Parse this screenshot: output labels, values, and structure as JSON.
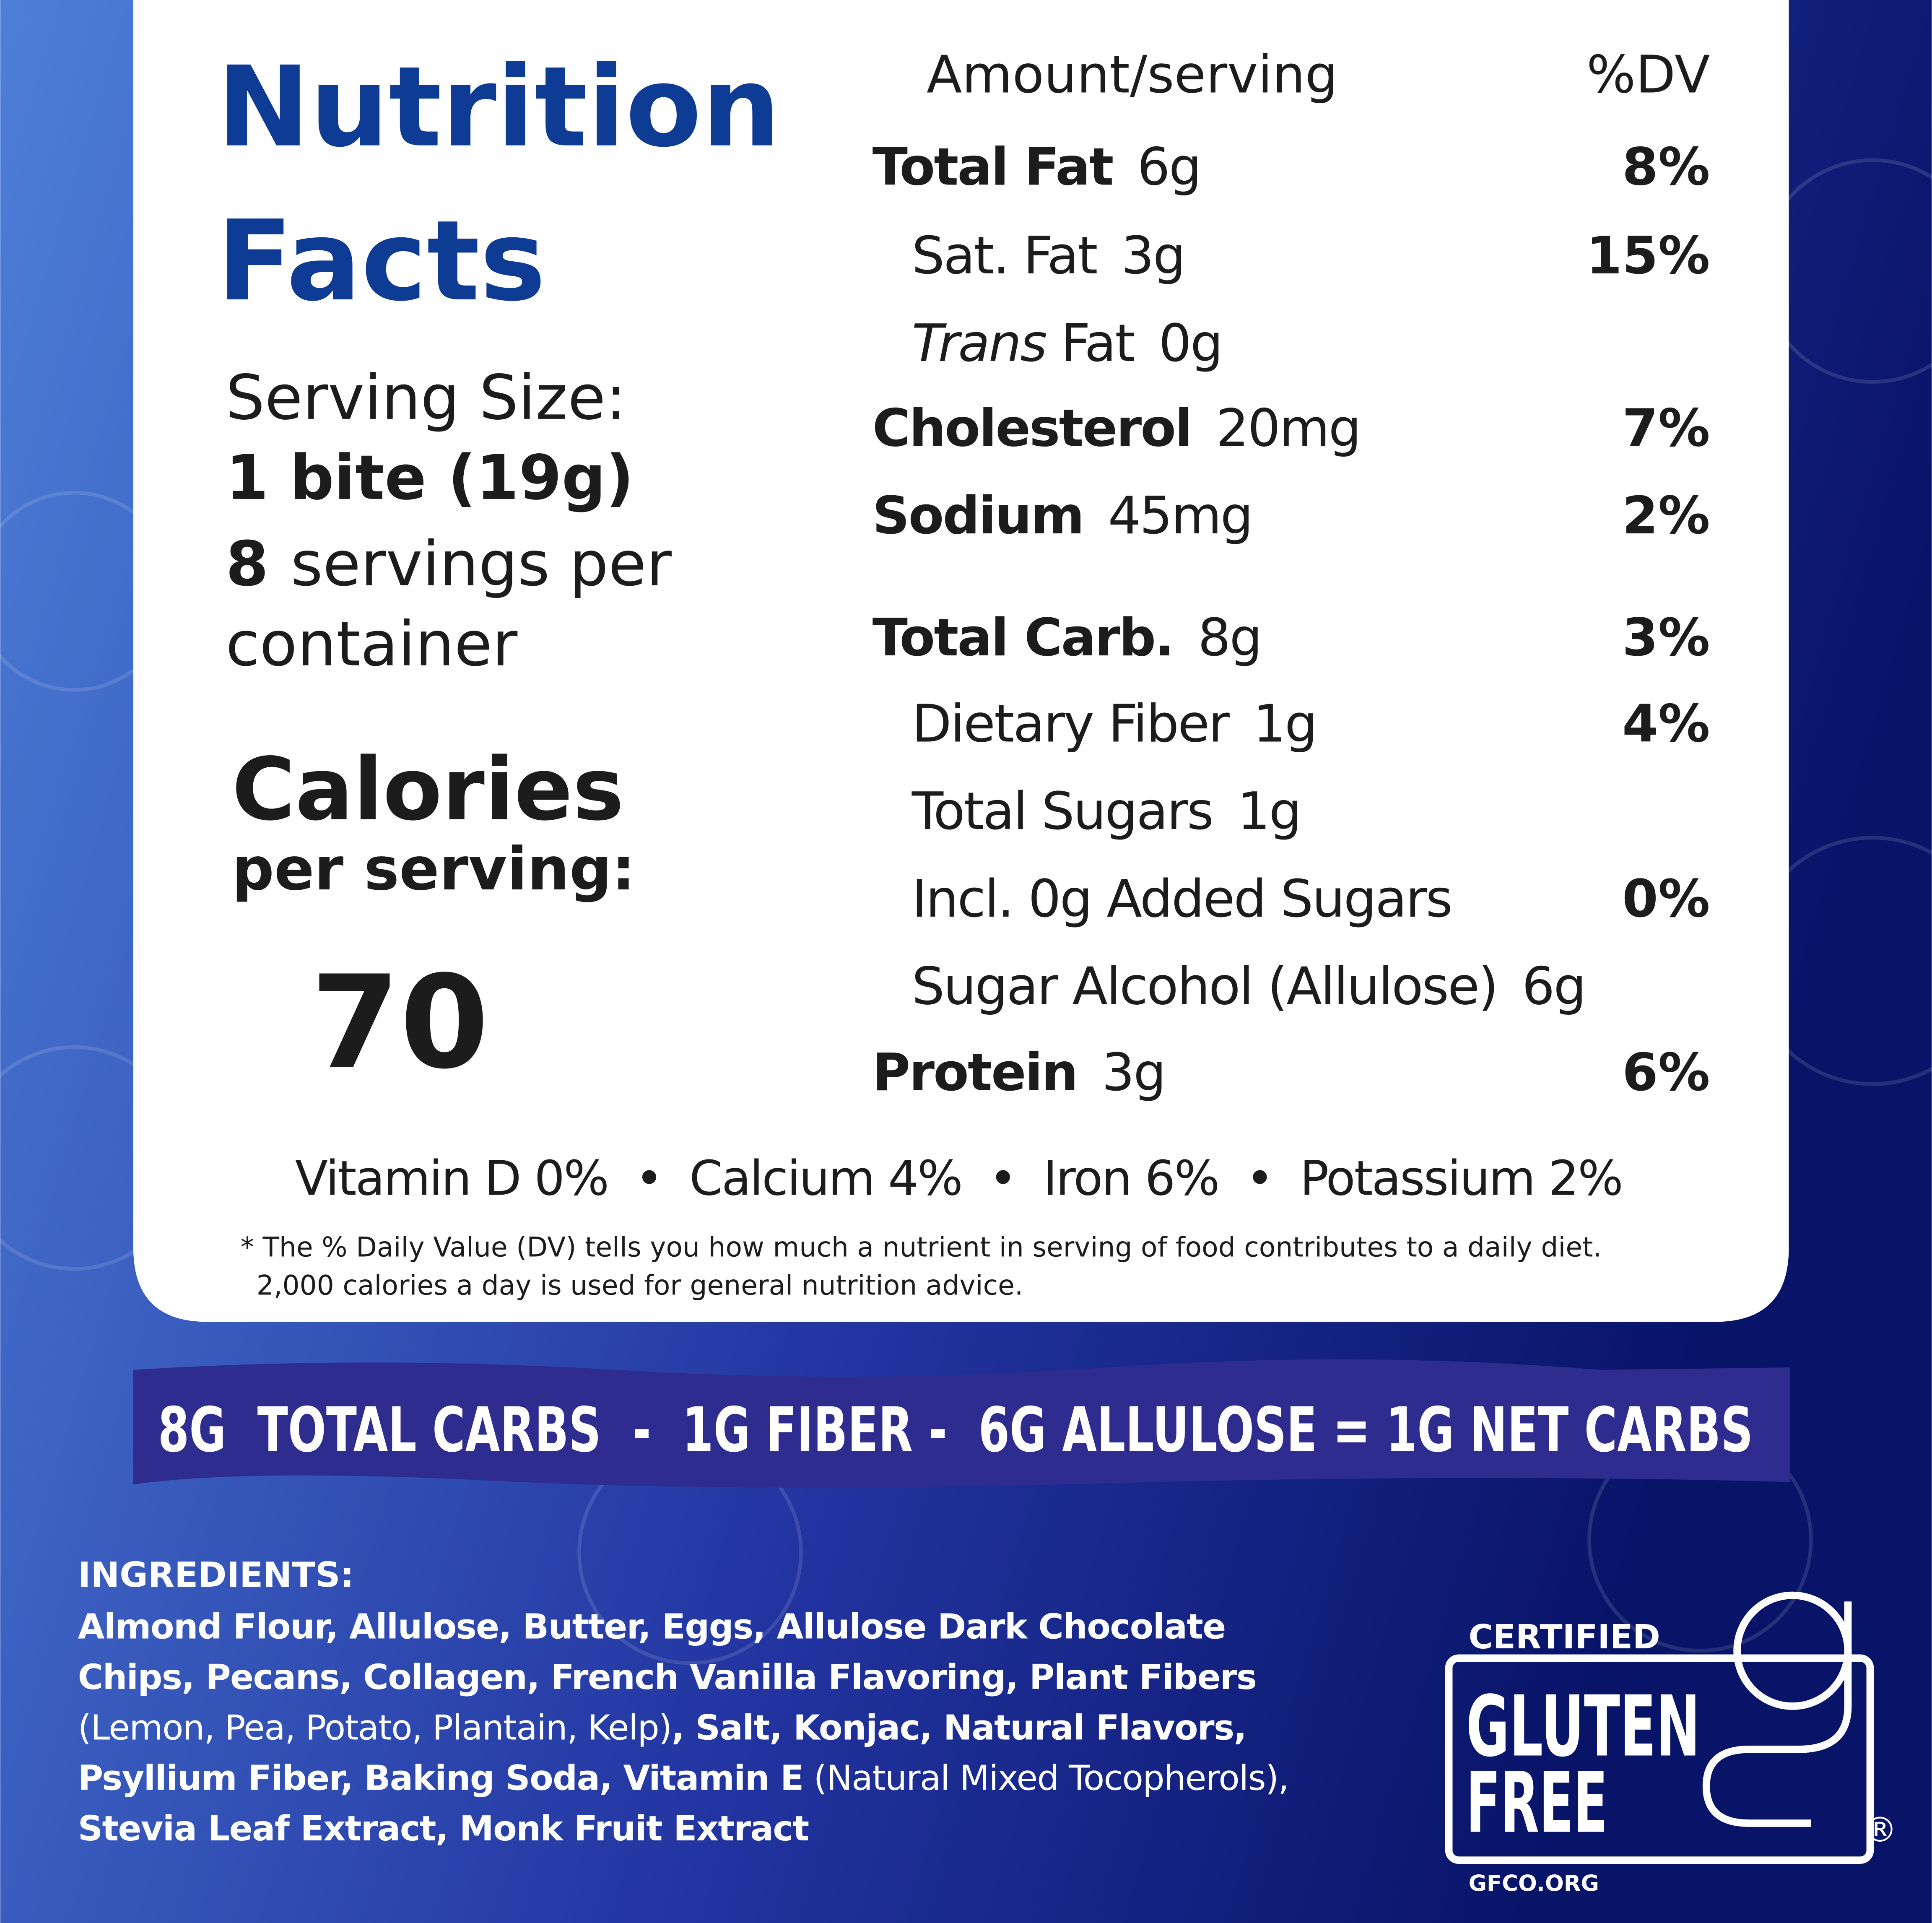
{
  "title_lines": [
    "Nutrition",
    "Facts"
  ],
  "serving": {
    "label": "Serving Size:",
    "size": "1 bite (19g)",
    "count": "8",
    "count_text": "servings per",
    "count_text2": "container"
  },
  "calories": {
    "label": "Calories",
    "sublabel": "per serving:",
    "value": 70
  },
  "header": {
    "amount": "Amount/serving",
    "dv": "%DV"
  },
  "nutrients": [
    {
      "name": "Total Fat",
      "amount": "6g",
      "dv": "8%"
    },
    {
      "name": "Sat. Fat",
      "amount": "3g",
      "dv": "15%",
      "indent": true
    },
    {
      "name_italic": "Trans",
      "name": "Fat",
      "amount": "0g",
      "indent": true
    },
    {
      "name": "Cholesterol",
      "amount": "20mg",
      "dv": "7%"
    },
    {
      "name": "Sodium",
      "amount": "45mg",
      "dv": "2%"
    },
    {
      "name": "Total Carb.",
      "amount": "8g",
      "dv": "3%"
    },
    {
      "name": "Dietary Fiber",
      "amount": "1g",
      "dv": "4%",
      "indent": true
    },
    {
      "name": "Total Sugars",
      "amount": "1g",
      "indent": true
    },
    {
      "name": "Incl. 0g Added Sugars",
      "dv": "0%",
      "indent": true
    },
    {
      "name": "Sugar Alcohol (Allulose)",
      "amount": "6g",
      "indent": true
    },
    {
      "name": "Protein",
      "amount": "3g",
      "dv": "6%"
    }
  ],
  "vitamins": [
    "Vitamin D 0%",
    "Calcium 4%",
    "Iron 6%",
    "Potassium 2%"
  ],
  "footnote": [
    "* The % Daily Value (DV) tells you how much a nutrient in serving of food contributes to a daily diet.",
    "2,000 calories a day is used for general nutrition advice."
  ],
  "net_carbs": "8G  TOTAL CARBS  -  1G FIBER -  6G ALLULOSE = 1G NET CARBS",
  "ingredients": {
    "label": "INGREDIENTS:",
    "lines": [
      [
        {
          "text": "Almond Flour, Allulose, Butter, Eggs, Allulose Dark Chocolate",
          "bold": true
        }
      ],
      [
        {
          "text": "Chips, Pecans, Collagen, French Vanilla Flavoring, Plant Fibers",
          "bold": true
        }
      ],
      [
        {
          "text": "(Lemon, Pea, Potato, Plantain, Kelp)",
          "bold": false
        },
        {
          "text": ", Salt, Konjac, Natural Flavors,",
          "bold": true
        }
      ],
      [
        {
          "text": "Psyllium Fiber, Baking Soda, Vitamin E",
          "bold": true
        },
        {
          "text": " (Natural Mixed Tocopherols),",
          "bold": false
        }
      ],
      [
        {
          "text": "Stevia Leaf Extract, Monk Fruit Extract",
          "bold": true
        }
      ]
    ]
  },
  "badge": {
    "certified": "CERTIFIED",
    "line1": "GLUTEN",
    "line2": "FREE",
    "registered": "®",
    "site": "GFCO.ORG"
  }
}
